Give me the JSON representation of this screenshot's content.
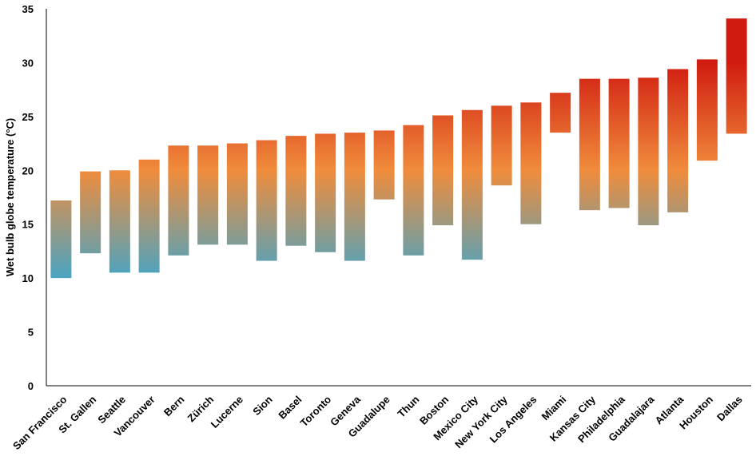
{
  "chart_data": {
    "type": "bar",
    "subtype": "floating-range",
    "title": "",
    "xlabel": "",
    "ylabel": "Wet bulb globe temperature (°C)",
    "ylim": [
      0,
      35
    ],
    "yticks": [
      0,
      5,
      10,
      15,
      20,
      25,
      30,
      35
    ],
    "grid": false,
    "legend": "none",
    "categories": [
      "San Francisco",
      "St. Gallen",
      "Seattle",
      "Vancouver",
      "Bern",
      "Zürich",
      "Lucerne",
      "Sion",
      "Basel",
      "Toronto",
      "Geneva",
      "Guadalupe",
      "Thun",
      "Boston",
      "Mexico City",
      "New York City",
      "Los Angeles",
      "Miami",
      "Kansas City",
      "Philadelphia",
      "Guadalajara",
      "Atlanta",
      "Houston",
      "Dallas"
    ],
    "low": [
      10.0,
      12.3,
      10.5,
      10.5,
      12.1,
      13.1,
      13.1,
      11.6,
      13.0,
      12.4,
      11.6,
      17.3,
      12.1,
      14.9,
      11.7,
      18.6,
      15.0,
      23.5,
      16.3,
      16.5,
      14.9,
      16.1,
      20.9,
      23.4
    ],
    "high": [
      17.2,
      19.9,
      20.0,
      21.0,
      22.3,
      22.3,
      22.5,
      22.8,
      23.2,
      23.4,
      23.5,
      23.7,
      24.2,
      25.1,
      25.6,
      26.0,
      26.3,
      27.2,
      28.5,
      28.5,
      28.6,
      29.4,
      30.3,
      34.1
    ],
    "colors": {
      "cold": "#4aa4c2",
      "mid": "#f08c3c",
      "hot": "#d01c10"
    }
  }
}
